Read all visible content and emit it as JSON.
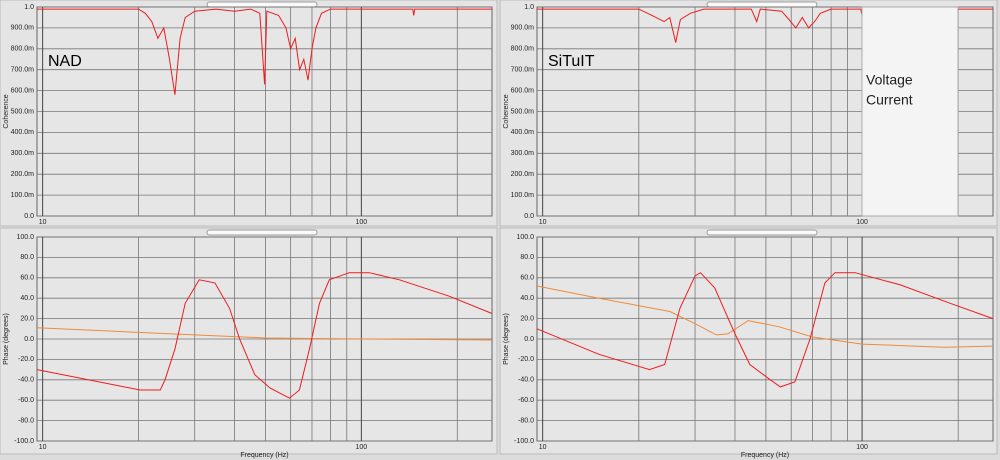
{
  "chart_data": [
    {
      "type": "line",
      "annotation": "NAD",
      "ylabel": "Coherence",
      "xscale": "log",
      "grid": true,
      "xlim": [
        9.6,
        257
      ],
      "xticks": [
        10,
        100
      ],
      "xminor_ticks": [
        20,
        30,
        40,
        50,
        60,
        70,
        80,
        90,
        200
      ],
      "ylim": [
        0,
        1
      ],
      "yticks": [
        {
          "value": 0,
          "label": "0.0"
        },
        {
          "value": 0.1,
          "label": "100.0m"
        },
        {
          "value": 0.2,
          "label": "200.0m"
        },
        {
          "value": 0.3,
          "label": "300.0m"
        },
        {
          "value": 0.4,
          "label": "400.0m"
        },
        {
          "value": 0.5,
          "label": "500.0m"
        },
        {
          "value": 0.6,
          "label": "600.0m"
        },
        {
          "value": 0.7,
          "label": "700.0m"
        },
        {
          "value": 0.8,
          "label": "800.0m"
        },
        {
          "value": 0.9,
          "label": "900.0m"
        },
        {
          "value": 1,
          "label": "1.0"
        }
      ],
      "series": [
        {
          "color": "#ee1c1c",
          "x": [
            9.6,
            20,
            21,
            22,
            23,
            24,
            25,
            26,
            27,
            28,
            30,
            35,
            40,
            45,
            48,
            49.7,
            50.5,
            55,
            58,
            60,
            62,
            64,
            66,
            68,
            70,
            72,
            75,
            80,
            100,
            145,
            146,
            147,
            257
          ],
          "values": [
            0.99,
            0.99,
            0.97,
            0.93,
            0.85,
            0.9,
            0.75,
            0.58,
            0.85,
            0.95,
            0.98,
            0.99,
            0.98,
            0.99,
            0.97,
            0.63,
            0.98,
            0.96,
            0.9,
            0.8,
            0.85,
            0.7,
            0.75,
            0.65,
            0.8,
            0.9,
            0.97,
            0.99,
            0.99,
            0.99,
            0.96,
            0.99,
            0.99
          ]
        }
      ]
    },
    {
      "type": "line",
      "annotation": "SiTuIT",
      "ylabel": "Coherence",
      "xscale": "log",
      "grid": true,
      "xlim": [
        9.6,
        257
      ],
      "xticks": [
        10,
        100
      ],
      "xminor_ticks": [
        20,
        30,
        40,
        50,
        60,
        70,
        80,
        90,
        200
      ],
      "ylim": [
        0,
        1
      ],
      "yticks": [
        {
          "value": 0,
          "label": "0.0"
        },
        {
          "value": 0.1,
          "label": "100.0m"
        },
        {
          "value": 0.2,
          "label": "200.0m"
        },
        {
          "value": 0.3,
          "label": "300.0m"
        },
        {
          "value": 0.4,
          "label": "400.0m"
        },
        {
          "value": 0.5,
          "label": "500.0m"
        },
        {
          "value": 0.6,
          "label": "600.0m"
        },
        {
          "value": 0.7,
          "label": "700.0m"
        },
        {
          "value": 0.8,
          "label": "800.0m"
        },
        {
          "value": 0.9,
          "label": "900.0m"
        },
        {
          "value": 1,
          "label": "1.0"
        }
      ],
      "series": [
        {
          "color": "#ee1c1c",
          "x": [
            9.6,
            20,
            22,
            24,
            25,
            26.1,
            27,
            29,
            32,
            45,
            46.8,
            48,
            56,
            59,
            62,
            65,
            68,
            71,
            74,
            80,
            99,
            100,
            101,
            180,
            182,
            184,
            257
          ],
          "values": [
            0.99,
            0.99,
            0.96,
            0.93,
            0.95,
            0.83,
            0.94,
            0.97,
            0.99,
            0.99,
            0.93,
            0.99,
            0.98,
            0.94,
            0.9,
            0.95,
            0.9,
            0.93,
            0.97,
            0.99,
            0.99,
            0.96,
            0.99,
            0.99,
            0.95,
            0.99,
            0.99
          ]
        }
      ]
    },
    {
      "type": "line",
      "ylabel": "Phase (degrees)",
      "xlabel": "Frequency (Hz)",
      "xscale": "log",
      "grid": true,
      "xlim": [
        9.6,
        257
      ],
      "xticks": [
        10,
        100
      ],
      "xminor_ticks": [
        20,
        30,
        40,
        50,
        60,
        70,
        80,
        90,
        200
      ],
      "ylim": [
        -100,
        100
      ],
      "yticks": [
        {
          "value": -100,
          "label": "-100.0"
        },
        {
          "value": -80,
          "label": "-80.0"
        },
        {
          "value": -60,
          "label": "-60.0"
        },
        {
          "value": -40,
          "label": "-40.0"
        },
        {
          "value": -20,
          "label": "-20.0"
        },
        {
          "value": 0,
          "label": "0.0"
        },
        {
          "value": 20,
          "label": "20.0"
        },
        {
          "value": 40,
          "label": "40.0"
        },
        {
          "value": 60,
          "label": "60.0"
        },
        {
          "value": 80,
          "label": "80.0"
        },
        {
          "value": 100,
          "label": "100.0"
        }
      ],
      "series": [
        {
          "color": "#f08a3c",
          "x": [
            9.6,
            30,
            50,
            100,
            257
          ],
          "values": [
            11,
            4,
            1,
            0,
            -1
          ]
        },
        {
          "color": "#ee1c1c",
          "x": [
            9.6,
            20.2,
            23.4,
            24.2,
            26,
            28,
            31,
            34.7,
            38.6,
            41.5,
            46.3,
            51.7,
            59.5,
            63.9,
            68.7,
            73.9,
            79.3,
            91.6,
            105.9,
            131.6,
            188.6,
            257
          ],
          "values": [
            -30,
            -50,
            -50,
            -40,
            -10,
            35,
            58,
            55,
            30,
            0,
            -35,
            -48,
            -58,
            -50,
            -10,
            35,
            58,
            65,
            65,
            58,
            42,
            25
          ]
        }
      ]
    },
    {
      "type": "line",
      "ylabel": "Phase (degrees)",
      "xlabel": "Frequency (Hz)",
      "xscale": "log",
      "grid": true,
      "xlim": [
        9.6,
        257
      ],
      "xticks": [
        10,
        100
      ],
      "xminor_ticks": [
        20,
        30,
        40,
        50,
        60,
        70,
        80,
        90,
        200
      ],
      "ylim": [
        -100,
        100
      ],
      "yticks": [
        {
          "value": -100,
          "label": "-100.0"
        },
        {
          "value": -80,
          "label": "-80.0"
        },
        {
          "value": -60,
          "label": "-60.0"
        },
        {
          "value": -40,
          "label": "-40.0"
        },
        {
          "value": -20,
          "label": "-20.0"
        },
        {
          "value": 0,
          "label": "0.0"
        },
        {
          "value": 20,
          "label": "20.0"
        },
        {
          "value": 40,
          "label": "40.0"
        },
        {
          "value": 60,
          "label": "60.0"
        },
        {
          "value": 80,
          "label": "80.0"
        },
        {
          "value": 100,
          "label": "100.0"
        }
      ],
      "series": [
        {
          "name": "Voltage",
          "color": "#f08a3c",
          "x": [
            9.6,
            15,
            25,
            30,
            35,
            38,
            44,
            55,
            70,
            100,
            180,
            257
          ],
          "values": [
            52,
            40,
            27,
            15,
            4,
            5,
            18,
            12,
            2,
            -5,
            -8,
            -7
          ]
        },
        {
          "name": "Current",
          "color": "#ee1c1c",
          "x": [
            9.6,
            15,
            21.6,
            24.1,
            26.9,
            30,
            31.2,
            34.6,
            40,
            44.5,
            51.6,
            55.5,
            61.6,
            68.7,
            76.5,
            82.3,
            95.1,
            131.8,
            188.8,
            257
          ],
          "values": [
            10,
            -15,
            -30,
            -25,
            30,
            62,
            65,
            50,
            5,
            -25,
            -40,
            -47,
            -42,
            0,
            55,
            65,
            65,
            53,
            35,
            20
          ]
        }
      ]
    }
  ]
}
